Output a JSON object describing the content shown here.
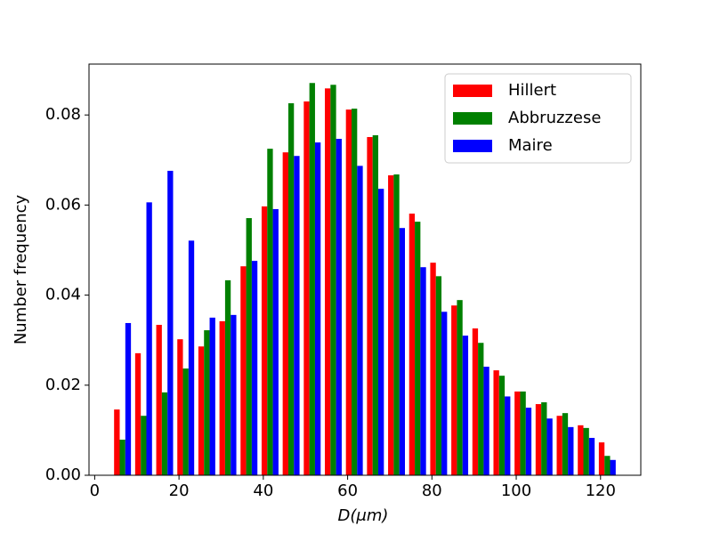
{
  "chart_data": {
    "type": "histogram",
    "xlabel": "D(μm)",
    "ylabel": "Number frequency",
    "bins": [
      4.1,
      9.1,
      14.1,
      19.1,
      24.1,
      29.1,
      34.1,
      39.1,
      44.1,
      49.1,
      54.1,
      59.1,
      64.1,
      69.1,
      74.1,
      79.1,
      84.1,
      89.1,
      94.1,
      99.1,
      104.1,
      109.1,
      114.1,
      119.1,
      124.1
    ],
    "series": [
      {
        "name": "Hillert",
        "color": "#ff0000",
        "values": [
          0.0146,
          0.0271,
          0.0334,
          0.0302,
          0.0286,
          0.0342,
          0.0464,
          0.0597,
          0.0717,
          0.083,
          0.0859,
          0.0812,
          0.0751,
          0.0666,
          0.0581,
          0.0472,
          0.0377,
          0.0326,
          0.0233,
          0.0186,
          0.0158,
          0.0132,
          0.0111,
          0.0073
        ]
      },
      {
        "name": "Abbruzzese",
        "color": "#008000",
        "values": [
          0.0079,
          0.0132,
          0.0184,
          0.0237,
          0.0322,
          0.0433,
          0.0571,
          0.0725,
          0.0826,
          0.0871,
          0.0867,
          0.0814,
          0.0755,
          0.0668,
          0.0563,
          0.0442,
          0.0389,
          0.0294,
          0.0221,
          0.0186,
          0.0162,
          0.0138,
          0.0105,
          0.0043
        ]
      },
      {
        "name": "Maire",
        "color": "#0000ff",
        "values": [
          0.0338,
          0.0606,
          0.0676,
          0.0521,
          0.035,
          0.0356,
          0.0476,
          0.0591,
          0.0709,
          0.0739,
          0.0747,
          0.0687,
          0.0636,
          0.0549,
          0.0462,
          0.0363,
          0.031,
          0.0241,
          0.0175,
          0.015,
          0.0126,
          0.0107,
          0.0083,
          0.0034
        ]
      }
    ],
    "xlim": [
      -1.35,
      129.55
    ],
    "ylim": [
      0,
      0.0913
    ],
    "xticks": [
      0,
      20,
      40,
      60,
      80,
      100,
      120
    ],
    "yticks": [
      {
        "value": 0,
        "label": "0.00"
      },
      {
        "value": 0.02,
        "label": "0.02"
      },
      {
        "value": 0.04,
        "label": "0.04"
      },
      {
        "value": 0.06,
        "label": "0.06"
      },
      {
        "value": 0.08,
        "label": "0.08"
      }
    ],
    "legend": "upper right"
  }
}
